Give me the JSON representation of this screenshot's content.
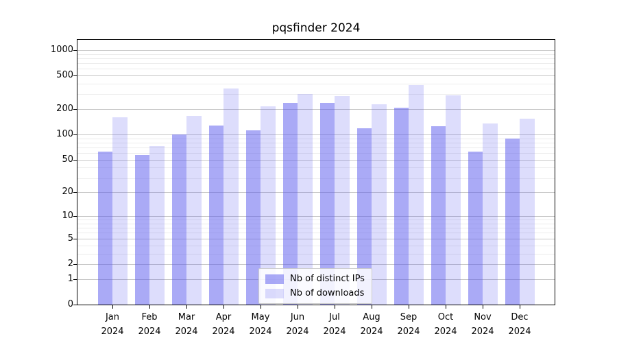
{
  "chart_data": {
    "type": "bar",
    "title": "pqsfinder 2024",
    "categories": [
      "Jan",
      "Feb",
      "Mar",
      "Apr",
      "May",
      "Jun",
      "Jul",
      "Aug",
      "Sep",
      "Oct",
      "Nov",
      "Dec"
    ],
    "category_year": "2024",
    "series": [
      {
        "name": "Nb of distinct IPs",
        "values": [
          62,
          57,
          100,
          127,
          113,
          235,
          237,
          118,
          207,
          126,
          62,
          90
        ],
        "color": "rgba(85,85,238,0.5)"
      },
      {
        "name": "Nb of downloads",
        "values": [
          160,
          73,
          165,
          350,
          216,
          300,
          285,
          230,
          382,
          289,
          135,
          155
        ],
        "color": "rgba(85,85,238,0.2)"
      }
    ],
    "y_axis": {
      "scale": "log1p",
      "ticks": [
        0,
        1,
        2,
        5,
        10,
        20,
        50,
        100,
        200,
        500,
        1000
      ],
      "minor_gridlines": [
        3,
        4,
        6,
        7,
        8,
        9,
        30,
        40,
        60,
        70,
        80,
        90,
        300,
        400,
        600,
        700,
        800,
        900
      ],
      "ylim": [
        0,
        1000
      ]
    },
    "legend": {
      "position": "lower center"
    },
    "colors": {
      "grid_major": "#c6c6c6",
      "grid_minor": "#ececec",
      "axis": "#000000",
      "bar_base": "#5555ee"
    },
    "grid": true
  }
}
